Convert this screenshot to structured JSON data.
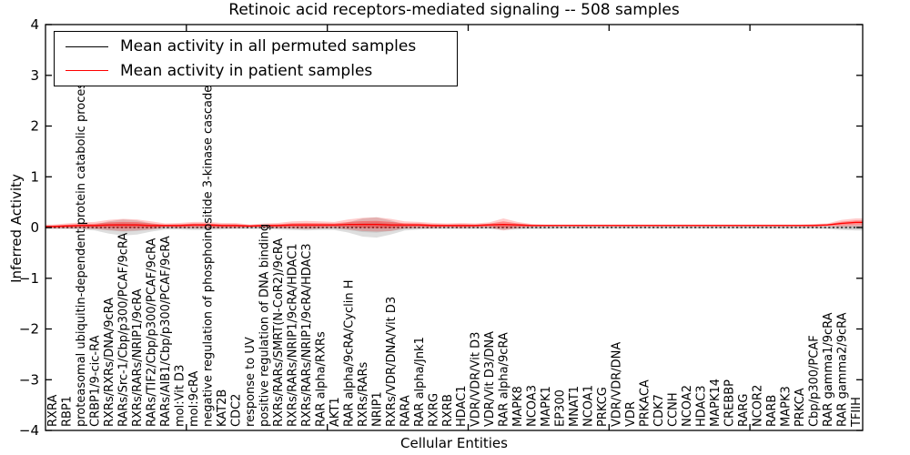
{
  "figure": {
    "title": "Retinoic acid receptors-mediated signaling -- 508 samples",
    "xlabel": "Cellular Entities",
    "ylabel": "Inferred Activity"
  },
  "legend": {
    "entries": [
      {
        "label": "Mean activity in all permuted samples",
        "color": "#000000"
      },
      {
        "label": "Mean activity in patient samples",
        "color": "#ff0000"
      }
    ]
  },
  "chart_data": {
    "type": "line",
    "title": "Retinoic acid receptors-mediated signaling -- 508 samples",
    "xlabel": "Cellular Entities",
    "ylabel": "Inferred Activity",
    "ylim": [
      -4,
      4
    ],
    "yticks": [
      4,
      3,
      2,
      1,
      0,
      -1,
      -2,
      -3,
      -4
    ],
    "ytick_labels": [
      "4",
      "3",
      "2",
      "1",
      "0",
      "−1",
      "−2",
      "−3",
      "−4"
    ],
    "x_major_tick_indices": [
      10,
      20,
      30,
      40,
      50
    ],
    "grid": false,
    "legend_position": "upper left",
    "categories": [
      "RXRA",
      "RBP1",
      "proteasomal ubiquitin-dependent protein catabolic process",
      "CRBP1/9-cic-RA",
      "RXRs/RXRs/DNA/9cRA",
      "RARs/Src-1/Cbp/p300/PCAF/9cRA",
      "RXRs/RARs/NRIP1/9cRA",
      "RARs/TIF2/Cbp/p300/PCAF/9cRA",
      "RARs/AIB1/Cbp/p300/PCAF/9cRA",
      "mol:Vit D3",
      "mol:9cRA",
      "negative regulation of phosphoinositide 3-kinase cascade",
      "KAT2B",
      "CDC2",
      "response to UV",
      "positive regulation of DNA binding",
      "RXRs/RARs/SMRT(N-CoR2)/9cRA",
      "RXRs/RARs/NRIP1/9cRA/HDAC1",
      "RXRs/RARs/NRIP1/9cRA/HDAC3",
      "RAR alpha/RXRs",
      "AKT1",
      "RAR alpha/9cRA/Cyclin H",
      "RXRs/RARs",
      "NRIP1",
      "RXRs/VDR/DNA/Vit D3",
      "RARA",
      "RAR alpha/Jnk1",
      "RXRG",
      "RXRB",
      "HDAC1",
      "VDR/VDR/Vit D3",
      "VDR/Vit D3/DNA",
      "RAR alpha/9cRA",
      "MAPK8",
      "NCOA3",
      "MAPK1",
      "EP300",
      "MNAT1",
      "NCOA1",
      "PRKCG",
      "VDR/VDR/DNA",
      "VDR",
      "PRKACA",
      "CDK7",
      "CCNH",
      "NCOA2",
      "HDAC3",
      "MAPK14",
      "CREBBP",
      "RARG",
      "NCOR2",
      "RARB",
      "MAPK3",
      "PRKCA",
      "Cbp/p300/PCAF",
      "RAR gamma1/9cRA",
      "RAR gamma2/9cRA",
      "TFIIH"
    ],
    "series": [
      {
        "name": "Mean activity in all permuted samples",
        "color": "#000000",
        "band_color": "#888888",
        "style": "dotted",
        "values": [
          0,
          0,
          0,
          0,
          0,
          0,
          0,
          0,
          0,
          0,
          0,
          0,
          0,
          0,
          0,
          0,
          0,
          0,
          0,
          0,
          0,
          0,
          0,
          0,
          0,
          0,
          0,
          0,
          0,
          0,
          0,
          0,
          0,
          0,
          0,
          0,
          0,
          0,
          0,
          0,
          0,
          0,
          0,
          0,
          0,
          0,
          0,
          0,
          0,
          0,
          0,
          0,
          0,
          0,
          0,
          0,
          0,
          0
        ],
        "band": [
          0.03,
          0.03,
          0.04,
          0.06,
          0.12,
          0.16,
          0.14,
          0.08,
          0.04,
          0.04,
          0.05,
          0.05,
          0.04,
          0.03,
          0.03,
          0.03,
          0.04,
          0.05,
          0.06,
          0.05,
          0.05,
          0.1,
          0.18,
          0.2,
          0.14,
          0.06,
          0.04,
          0.03,
          0.03,
          0.03,
          0.03,
          0.03,
          0.05,
          0.04,
          0.03,
          0.03,
          0.02,
          0.02,
          0.02,
          0.02,
          0.02,
          0.02,
          0.02,
          0.02,
          0.02,
          0.02,
          0.02,
          0.02,
          0.02,
          0.02,
          0.02,
          0.02,
          0.02,
          0.02,
          0.02,
          0.03,
          0.05,
          0.06
        ]
      },
      {
        "name": "Mean activity in patient samples",
        "color": "#ff0000",
        "band_color": "#ff0000",
        "style": "solid",
        "values": [
          0.02,
          0.03,
          0.04,
          0.04,
          0.05,
          0.05,
          0.05,
          0.04,
          0.04,
          0.04,
          0.05,
          0.05,
          0.04,
          0.04,
          0.03,
          0.04,
          0.04,
          0.05,
          0.05,
          0.05,
          0.05,
          0.06,
          0.06,
          0.06,
          0.05,
          0.05,
          0.05,
          0.04,
          0.04,
          0.04,
          0.04,
          0.05,
          0.06,
          0.05,
          0.04,
          0.04,
          0.04,
          0.04,
          0.04,
          0.04,
          0.04,
          0.04,
          0.04,
          0.04,
          0.04,
          0.04,
          0.04,
          0.04,
          0.04,
          0.04,
          0.04,
          0.04,
          0.04,
          0.04,
          0.04,
          0.05,
          0.08,
          0.1
        ],
        "band": [
          0.04,
          0.05,
          0.06,
          0.07,
          0.1,
          0.12,
          0.11,
          0.08,
          0.04,
          0.05,
          0.06,
          0.06,
          0.05,
          0.05,
          0.03,
          0.04,
          0.05,
          0.07,
          0.08,
          0.07,
          0.06,
          0.1,
          0.13,
          0.14,
          0.12,
          0.07,
          0.06,
          0.05,
          0.04,
          0.05,
          0.04,
          0.05,
          0.12,
          0.06,
          0.03,
          0.02,
          0.02,
          0.02,
          0.02,
          0.02,
          0.02,
          0.02,
          0.02,
          0.02,
          0.02,
          0.02,
          0.02,
          0.02,
          0.02,
          0.02,
          0.02,
          0.02,
          0.02,
          0.02,
          0.03,
          0.03,
          0.07,
          0.08
        ]
      }
    ]
  }
}
